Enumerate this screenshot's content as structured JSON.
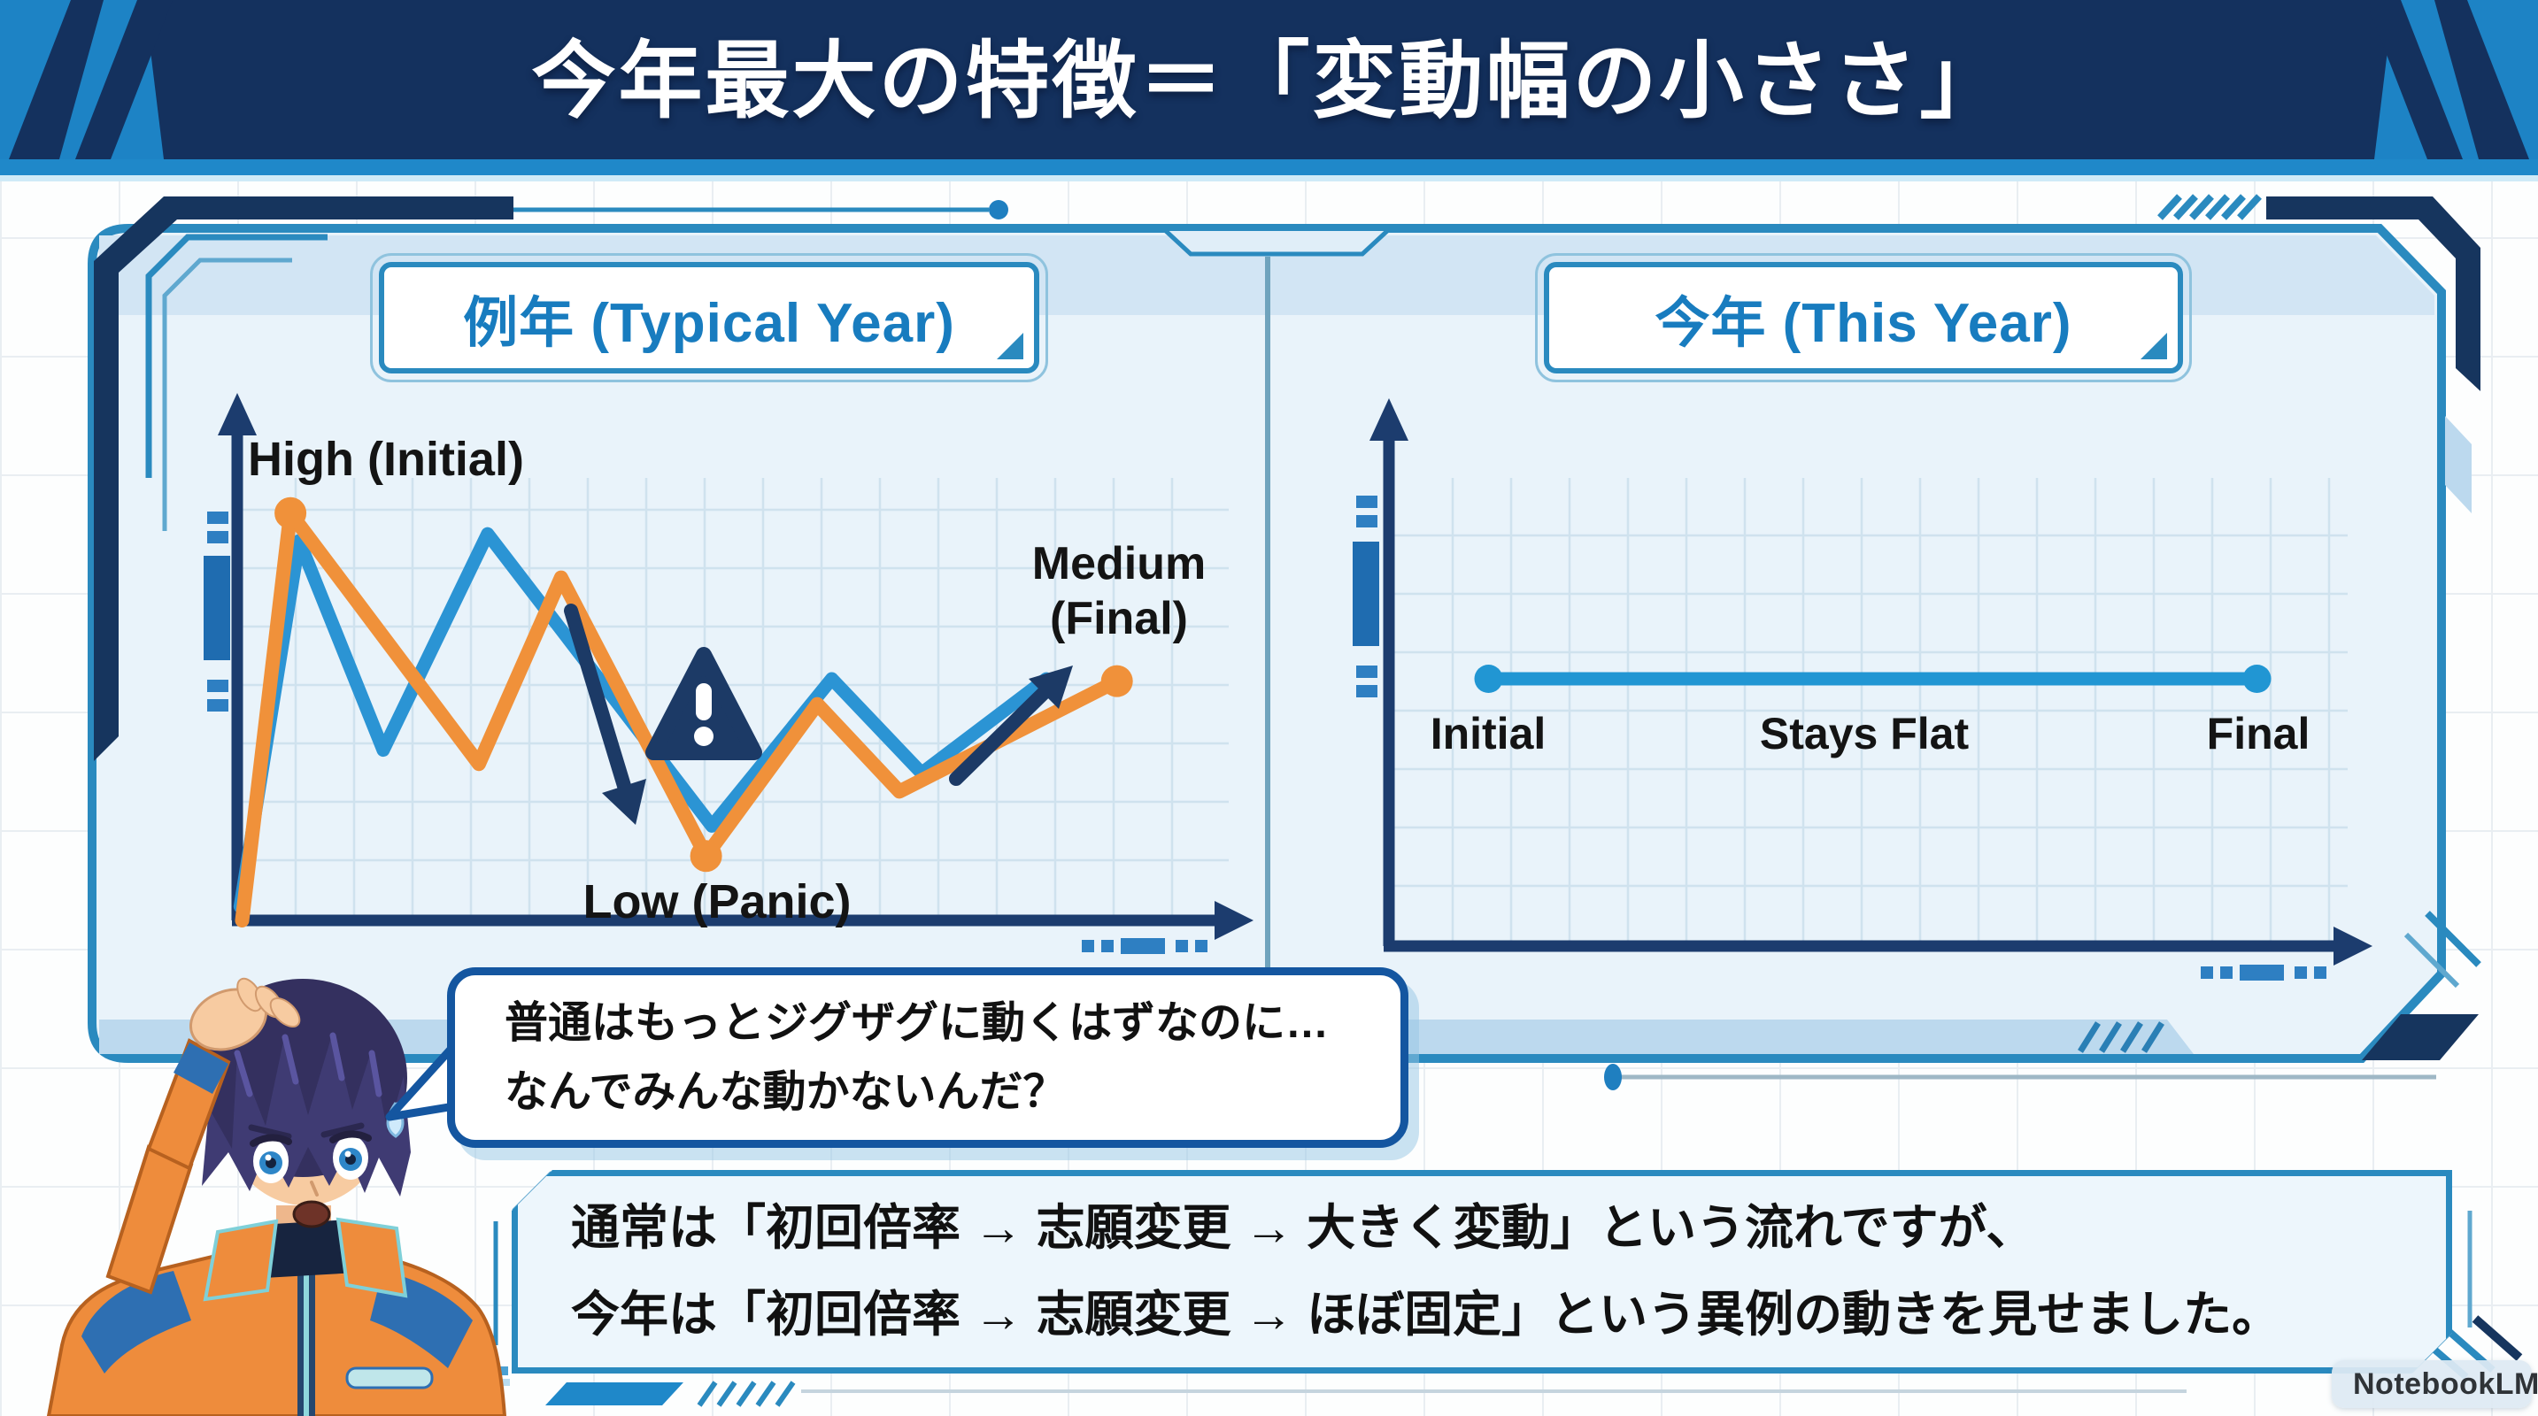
{
  "banner": {
    "title": "今年最大の特徴＝「変動幅の小ささ」"
  },
  "chart_data": [
    {
      "id": "typical-year",
      "type": "line",
      "title": "例年 (Typical Year)",
      "grid": true,
      "series": [
        {
          "name": "typical-blue",
          "color": "#2b94d4",
          "width": 15,
          "points": [
            [
              0.3,
              3
            ],
            [
              6.4,
              82.5
            ],
            [
              15.1,
              37
            ],
            [
              25.9,
              84
            ],
            [
              49.1,
              20.5
            ],
            [
              61.5,
              52.5
            ],
            [
              70.8,
              32
            ],
            [
              83.7,
              52.5
            ]
          ]
        },
        {
          "name": "typical-orange",
          "color": "#f0913a",
          "width": 16,
          "points": [
            [
              0.5,
              0
            ],
            [
              5.5,
              88.5
            ],
            [
              25,
              34
            ],
            [
              33.5,
              74.5
            ],
            [
              48.5,
              14
            ],
            [
              60,
              47
            ],
            [
              68.5,
              28
            ],
            [
              91,
              52
            ]
          ],
          "marker_indices": [
            1,
            4,
            7
          ],
          "marker_radius": 18
        }
      ],
      "annotations": {
        "high": "High (Initial)",
        "low": "Low (Panic)",
        "final": "Medium (Final)",
        "warning_icon": "!"
      }
    },
    {
      "id": "this-year",
      "type": "line",
      "title": "今年 (This Year)",
      "grid": true,
      "series": [
        {
          "name": "flat-blue",
          "color": "#2196d3",
          "width": 15,
          "points": [
            [
              10,
              55
            ],
            [
              91.5,
              55
            ]
          ],
          "marker_indices": [
            0,
            1
          ],
          "marker_radius": 16
        }
      ],
      "annotations": {
        "initial": "Initial",
        "mid": "Stays Flat",
        "final": "Final"
      }
    }
  ],
  "speech_bubble": {
    "line1": "普通はもっとジグザグに動くはずなのに…",
    "line2": "なんでみんな動かないんだ？"
  },
  "summary_box": {
    "line1": "通常は「初回倍率 → 志願変更 → 大きく変動」という流れですが、",
    "line2": "今年は「初回倍率 → 志願変更 → ほぼ固定」という異例の動きを見せました。"
  },
  "watermark": {
    "brand": "NotebookLM"
  },
  "colors": {
    "banner_navy": "#14315e",
    "banner_blue": "#1d83c5",
    "panel_border": "#2a8abf",
    "panel_bg": "#e9f3fa",
    "band_bg": "#d2e5f4",
    "axis_navy": "#1c3c6e",
    "line_blue": "#2196d3",
    "line_orange": "#f0913a",
    "annotation_navy": "#1c3a66",
    "title_blue": "#187cbf",
    "bubble_border": "#1456a0"
  }
}
